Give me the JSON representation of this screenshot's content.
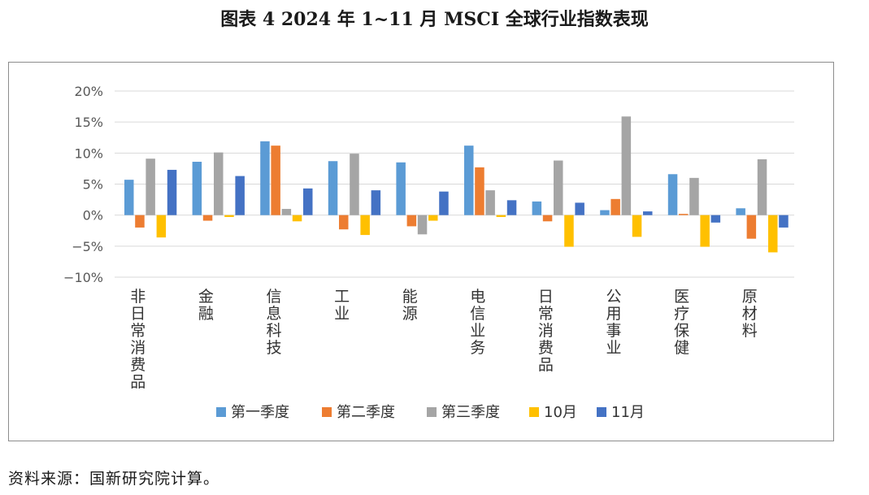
{
  "page": {
    "title": "图表 4  2024 年 1~11 月 MSCI 全球行业指数表现",
    "source_note": "资料来源：国新研究院计算。"
  },
  "chart_data": {
    "type": "bar",
    "categories": [
      "非日常消费品",
      "金融",
      "信息科技",
      "工业",
      "能源",
      "电信业务",
      "日常消费品",
      "公用事业",
      "医疗保健",
      "原材料"
    ],
    "series": [
      {
        "name": "第一季度",
        "color": "#5b9bd5",
        "values": [
          5.7,
          8.6,
          11.9,
          8.7,
          8.5,
          11.2,
          2.2,
          0.8,
          6.6,
          1.1
        ]
      },
      {
        "name": "第二季度",
        "color": "#ed7d31",
        "values": [
          -2.0,
          -0.9,
          11.2,
          -2.3,
          -1.8,
          7.7,
          -1.0,
          2.6,
          0.2,
          -3.8
        ]
      },
      {
        "name": "第三季度",
        "color": "#a5a5a5",
        "values": [
          9.1,
          10.1,
          1.0,
          9.9,
          -3.1,
          4.0,
          8.8,
          15.9,
          6.0,
          9.0
        ]
      },
      {
        "name": "10月",
        "color": "#ffc000",
        "values": [
          -3.6,
          -0.3,
          -1.0,
          -3.2,
          -0.9,
          -0.3,
          -5.1,
          -3.5,
          -5.1,
          -6.0
        ]
      },
      {
        "name": "11月",
        "color": "#4472c4",
        "values": [
          7.3,
          6.3,
          4.3,
          4.0,
          3.8,
          2.4,
          2.0,
          0.6,
          -1.2,
          -2.0
        ]
      }
    ],
    "ylim": [
      -10,
      20
    ],
    "yticks": [
      -10,
      -5,
      0,
      5,
      10,
      15,
      20
    ],
    "ytick_labels": [
      "−10%",
      "−5%",
      "0%",
      "5%",
      "10%",
      "15%",
      "20%"
    ],
    "grid": true,
    "legend_position": "bottom"
  }
}
